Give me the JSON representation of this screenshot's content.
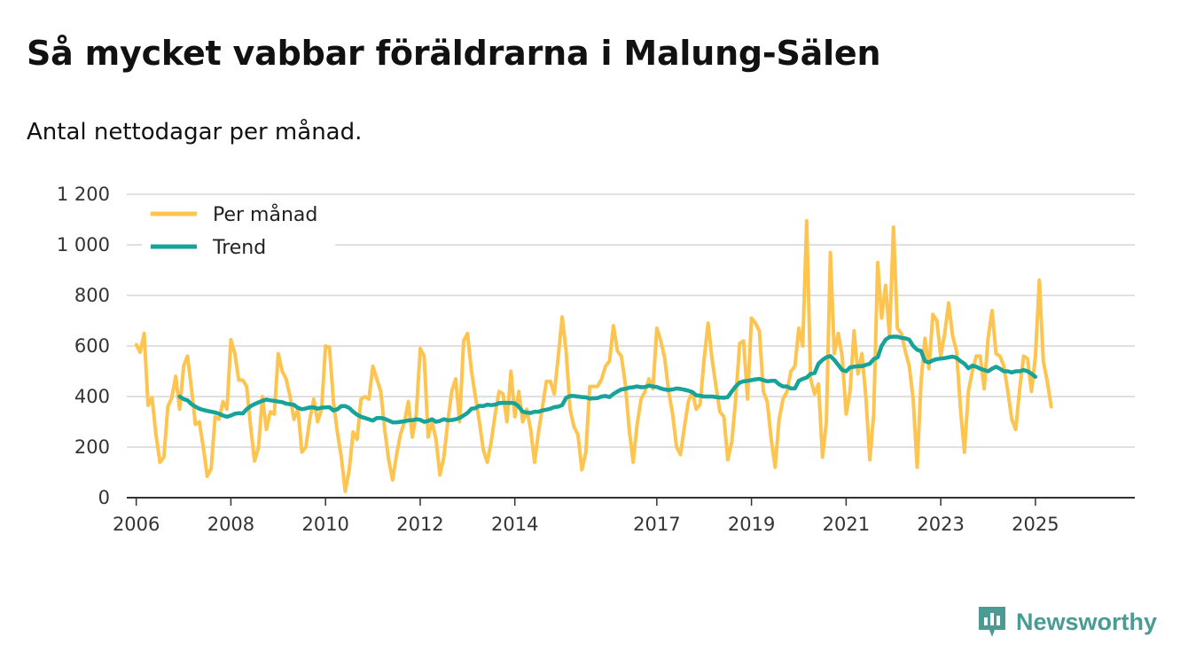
{
  "header": {
    "title": "Så mycket vabbar föräldrarna i Malung-Sälen",
    "subtitle": "Antal nettodagar per månad."
  },
  "brand": {
    "name": "Newsworthy"
  },
  "colors": {
    "monthly": "#fdc44f",
    "trend": "#17a29a",
    "grid": "#d6d6d6",
    "axis": "#333333",
    "brand": "#4a9c93"
  },
  "chart_data": {
    "type": "line",
    "title": "Så mycket vabbar föräldrarna i Malung-Sälen",
    "subtitle": "Antal nettodagar per månad.",
    "xlabel": "",
    "ylabel": "",
    "ylim": [
      0,
      1200
    ],
    "xlim": [
      2005.8,
      2027.1
    ],
    "y_ticks": [
      {
        "value": 0,
        "label": "0"
      },
      {
        "value": 200,
        "label": "200"
      },
      {
        "value": 400,
        "label": "400"
      },
      {
        "value": 600,
        "label": "600"
      },
      {
        "value": 800,
        "label": "800"
      },
      {
        "value": 1000,
        "label": "1 000"
      },
      {
        "value": 1200,
        "label": "1 200"
      }
    ],
    "x_ticks": [
      {
        "value": 2006,
        "label": "2006"
      },
      {
        "value": 2008,
        "label": "2008"
      },
      {
        "value": 2010,
        "label": "2010"
      },
      {
        "value": 2012,
        "label": "2012"
      },
      {
        "value": 2014,
        "label": "2014"
      },
      {
        "value": 2017,
        "label": "2017"
      },
      {
        "value": 2019,
        "label": "2019"
      },
      {
        "value": 2021,
        "label": "2021"
      },
      {
        "value": 2023,
        "label": "2023"
      },
      {
        "value": 2025,
        "label": "2025"
      }
    ],
    "grid": true,
    "legend_position": "top-left",
    "start_year": 2006,
    "series": [
      {
        "name": "Per månad",
        "color": "#fdc44f",
        "start_month_index": 0,
        "values": [
          605,
          575,
          650,
          365,
          395,
          250,
          140,
          160,
          360,
          395,
          480,
          350,
          520,
          560,
          430,
          290,
          300,
          200,
          85,
          115,
          320,
          310,
          380,
          350,
          625,
          570,
          465,
          465,
          440,
          280,
          145,
          200,
          400,
          270,
          340,
          330,
          570,
          500,
          470,
          400,
          310,
          350,
          180,
          200,
          310,
          390,
          300,
          350,
          600,
          595,
          380,
          260,
          160,
          25,
          110,
          260,
          230,
          390,
          400,
          390,
          520,
          470,
          420,
          270,
          150,
          70,
          170,
          250,
          300,
          380,
          240,
          330,
          590,
          560,
          240,
          300,
          230,
          90,
          160,
          300,
          420,
          470,
          300,
          620,
          650,
          500,
          400,
          300,
          190,
          140,
          220,
          330,
          420,
          410,
          300,
          500,
          320,
          420,
          300,
          350,
          270,
          140,
          260,
          360,
          460,
          460,
          410,
          560,
          715,
          580,
          350,
          280,
          250,
          110,
          180,
          440,
          440,
          440,
          470,
          520,
          540,
          680,
          580,
          560,
          450,
          270,
          140,
          290,
          390,
          420,
          470,
          430,
          670,
          620,
          550,
          420,
          330,
          200,
          170,
          280,
          380,
          420,
          350,
          370,
          550,
          690,
          550,
          440,
          340,
          320,
          150,
          220,
          390,
          610,
          620,
          390,
          710,
          690,
          660,
          420,
          380,
          230,
          120,
          310,
          390,
          420,
          500,
          520,
          670,
          600,
          1095,
          470,
          410,
          450,
          160,
          300,
          970,
          570,
          650,
          560,
          330,
          420,
          660,
          490,
          570,
          400,
          150,
          330,
          930,
          710,
          840,
          640,
          1070,
          670,
          650,
          580,
          520,
          390,
          120,
          460,
          630,
          510,
          725,
          700,
          560,
          650,
          770,
          640,
          580,
          350,
          180,
          420,
          500,
          560,
          560,
          430,
          630,
          740,
          570,
          560,
          520,
          420,
          310,
          270,
          430,
          560,
          550,
          420,
          560,
          860,
          540,
          460,
          360
        ]
      },
      {
        "name": "Trend",
        "color": "#17a29a",
        "start_month_index": 11,
        "values": [
          400,
          390,
          385,
          370,
          360,
          352,
          347,
          343,
          340,
          337,
          332,
          325,
          320,
          325,
          332,
          334,
          333,
          350,
          362,
          370,
          377,
          383,
          388,
          385,
          383,
          380,
          378,
          372,
          370,
          367,
          355,
          350,
          353,
          357,
          357,
          352,
          356,
          357,
          358,
          345,
          350,
          362,
          362,
          355,
          340,
          328,
          320,
          315,
          310,
          305,
          315,
          315,
          312,
          305,
          298,
          298,
          300,
          302,
          306,
          306,
          310,
          308,
          300,
          303,
          310,
          300,
          304,
          310,
          306,
          307,
          310,
          315,
          325,
          335,
          352,
          354,
          363,
          362,
          368,
          366,
          368,
          374,
          375,
          375,
          375,
          373,
          360,
          340,
          337,
          335,
          340,
          340,
          345,
          348,
          352,
          358,
          360,
          366,
          395,
          402,
          402,
          400,
          398,
          397,
          392,
          393,
          394,
          400,
          402,
          398,
          410,
          420,
          428,
          430,
          435,
          437,
          440,
          437,
          438,
          443,
          440,
          438,
          432,
          428,
          426,
          428,
          432,
          430,
          427,
          423,
          418,
          405,
          403,
          400,
          400,
          400,
          398,
          396,
          395,
          398,
          420,
          440,
          455,
          460,
          462,
          465,
          468,
          470,
          465,
          460,
          462,
          462,
          448,
          440,
          440,
          432,
          432,
          462,
          470,
          475,
          490,
          493,
          530,
          545,
          555,
          560,
          545,
          525,
          505,
          500,
          515,
          518,
          520,
          520,
          525,
          530,
          548,
          555,
          600,
          625,
          635,
          637,
          637,
          632,
          630,
          625,
          600,
          585,
          580,
          540,
          535,
          543,
          548,
          550,
          552,
          555,
          558,
          553,
          540,
          530,
          512,
          522,
          518,
          510,
          505,
          500,
          510,
          518,
          510,
          500,
          500,
          495,
          500,
          500,
          505,
          500,
          490,
          478
        ]
      }
    ]
  }
}
